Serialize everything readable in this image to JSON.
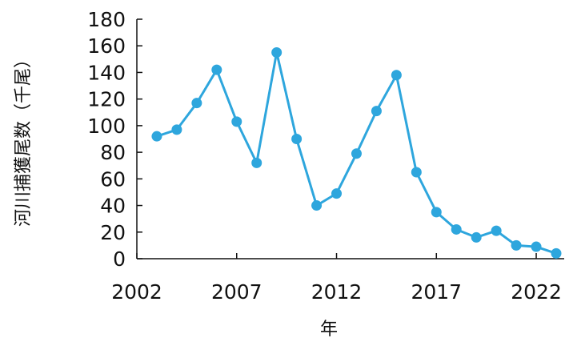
{
  "chart_data": {
    "type": "line",
    "title": "",
    "xlabel": "年",
    "ylabel": "河川捕獲尾数（千尾）",
    "x": [
      2003,
      2004,
      2005,
      2006,
      2007,
      2008,
      2009,
      2010,
      2011,
      2012,
      2013,
      2014,
      2015,
      2016,
      2017,
      2018,
      2019,
      2020,
      2021,
      2022,
      2023
    ],
    "series": [
      {
        "values": [
          92,
          97,
          117,
          142,
          103,
          72,
          155,
          90,
          40,
          49,
          79,
          111,
          138,
          65,
          35,
          22,
          16,
          21,
          10,
          9,
          4
        ],
        "color": "#2ea6dd"
      }
    ],
    "xticks": [
      "2002",
      "2007",
      "2012",
      "2017",
      "2022"
    ],
    "yticks": [
      "0",
      "20",
      "40",
      "60",
      "80",
      "100",
      "120",
      "140",
      "160",
      "180"
    ],
    "xlim": [
      2002,
      2023
    ],
    "ylim": [
      0,
      180
    ],
    "grid": false,
    "legend": "none"
  }
}
